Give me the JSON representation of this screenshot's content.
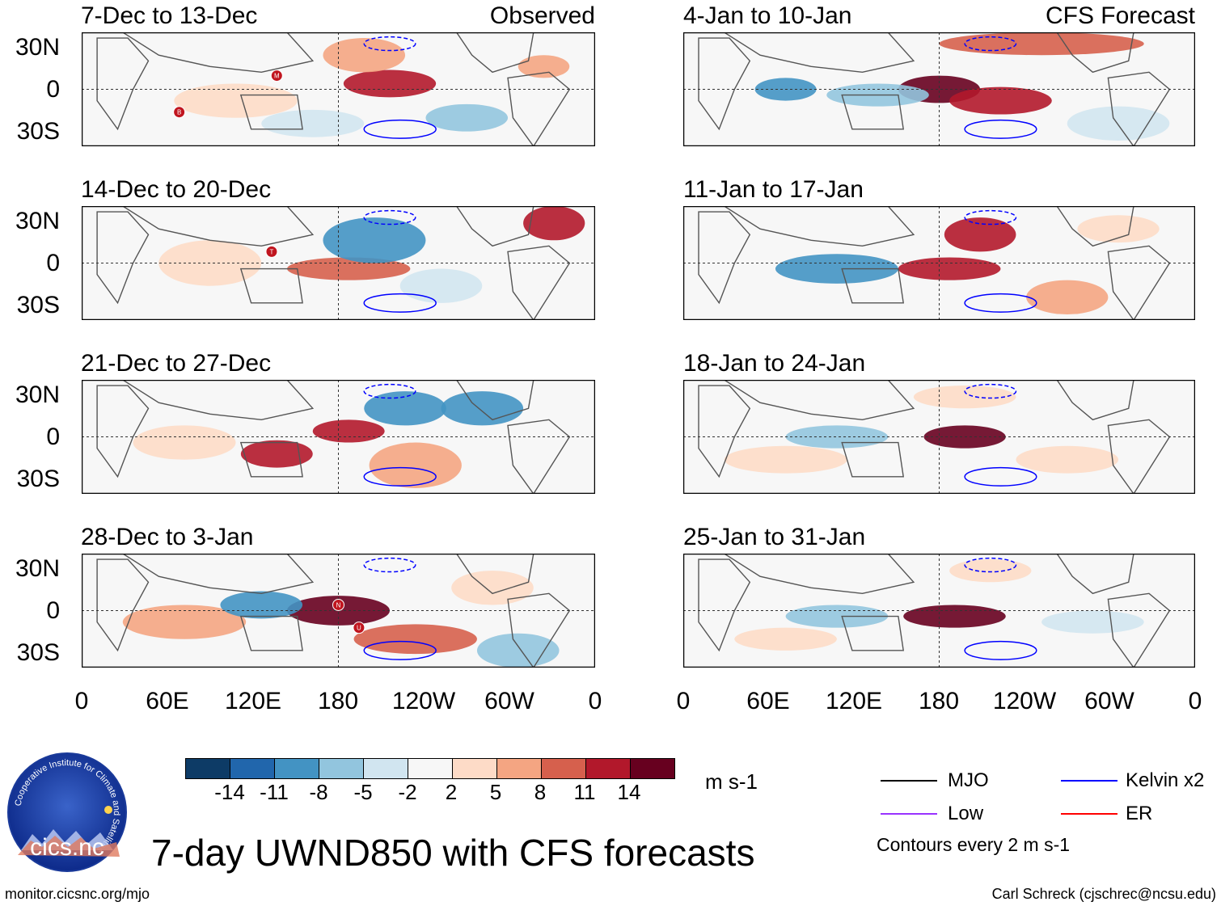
{
  "panels_left": [
    {
      "title": "7-Dec to 13-Dec",
      "label": "Observed"
    },
    {
      "title": "14-Dec to 20-Dec",
      "label": ""
    },
    {
      "title": "21-Dec to 27-Dec",
      "label": ""
    },
    {
      "title": "28-Dec to 3-Jan",
      "label": ""
    }
  ],
  "panels_right": [
    {
      "title": "4-Jan to 10-Jan",
      "label": "CFS Forecast"
    },
    {
      "title": "11-Jan to 17-Jan",
      "label": ""
    },
    {
      "title": "18-Jan to 24-Jan",
      "label": ""
    },
    {
      "title": "25-Jan to 31-Jan",
      "label": ""
    }
  ],
  "lat_labels": [
    "30N",
    "0",
    "30S"
  ],
  "lon_labels": [
    "0",
    "60E",
    "120E",
    "180",
    "120W",
    "60W",
    "0"
  ],
  "storm_markers": [
    {
      "panel": 0,
      "letter": "B"
    },
    {
      "panel": 0,
      "letter": "M"
    },
    {
      "panel": 1,
      "letter": "T"
    },
    {
      "panel": 3,
      "letter": "N"
    },
    {
      "panel": 3,
      "letter": "U"
    }
  ],
  "colorbar": {
    "colors": [
      "#0d3b66",
      "#2166ac",
      "#4393c3",
      "#92c5de",
      "#d1e5f0",
      "#f7f7f7",
      "#fddbc7",
      "#f4a582",
      "#d6604d",
      "#b2182b",
      "#67001f"
    ],
    "ticks": [
      "-14",
      "-11",
      "-8",
      "-5",
      "-2",
      "2",
      "5",
      "8",
      "11",
      "14"
    ],
    "units": "m s-1"
  },
  "legend": {
    "mjo": "MJO",
    "kelvin": "Kelvin x2",
    "low": "Low",
    "er": "ER",
    "contours": "Contours every 2 m s-1",
    "colors": {
      "mjo": "#000000",
      "kelvin": "#0000ff",
      "low": "#9933ff",
      "er": "#ff0000"
    }
  },
  "logo": {
    "text": "cics.nc",
    "ring_text": "Cooperative Institute for Climate and Satellites"
  },
  "main_title": "7-day UWND850 with CFS forecasts",
  "footer_left": "monitor.cicsnc.org/mjo",
  "footer_right": "Carl Schreck (cjschrec@ncsu.edu)"
}
